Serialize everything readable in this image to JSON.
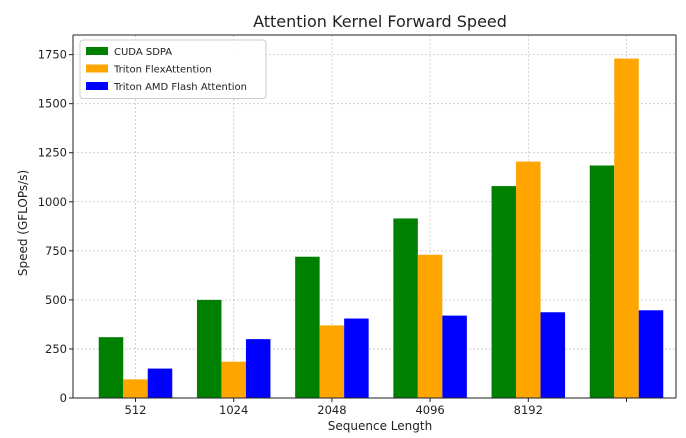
{
  "chart_data": {
    "type": "bar",
    "title": "Attention Kernel Forward Speed",
    "xlabel": "Sequence Length",
    "ylabel": "Speed (GFLOPs/s)",
    "categories": [
      "512",
      "1024",
      "2048",
      "4096",
      "8192",
      ""
    ],
    "ylim": [
      0,
      1850
    ],
    "yticks": [
      0,
      250,
      500,
      750,
      1000,
      1250,
      1500,
      1750
    ],
    "grid": true,
    "legend_position": "top-left",
    "series": [
      {
        "name": "CUDA SDPA",
        "color": "#008000",
        "values": [
          310,
          500,
          720,
          915,
          1080,
          1185
        ]
      },
      {
        "name": "Triton FlexAttention",
        "color": "#FFA500",
        "values": [
          95,
          185,
          370,
          730,
          1205,
          1730
        ]
      },
      {
        "name": "Triton AMD Flash Attention",
        "color": "#0000FF",
        "values": [
          150,
          300,
          405,
          420,
          437,
          447
        ]
      }
    ]
  }
}
